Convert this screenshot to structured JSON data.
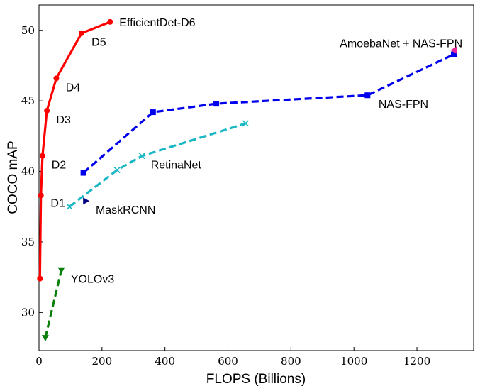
{
  "chart_data": {
    "type": "line",
    "title": "",
    "xlabel": "FLOPS (Billions)",
    "ylabel": "COCO mAP",
    "xlim": [
      0,
      1380
    ],
    "ylim": [
      27.3,
      51.8
    ],
    "xticks": [
      0,
      200,
      400,
      600,
      800,
      1000,
      1200
    ],
    "yticks": [
      30,
      35,
      40,
      45,
      50
    ],
    "grid": false,
    "legend": "none",
    "series": [
      {
        "name": "EfficientDet-D6",
        "color": "#ff0000",
        "style": "solid",
        "marker": "circle",
        "points": [
          [
            3,
            32.4
          ],
          [
            6,
            38.3
          ],
          [
            11,
            41.1
          ],
          [
            25,
            44.3
          ],
          [
            55,
            46.6
          ],
          [
            135,
            49.8
          ],
          [
            226,
            50.6
          ]
        ],
        "point_labels": [
          "",
          "D1",
          "D2",
          "D3",
          "D4",
          "D5",
          ""
        ]
      },
      {
        "name": "NAS-FPN",
        "color": "#0000ee",
        "style": "dashed",
        "marker": "square",
        "points": [
          [
            141,
            39.9
          ],
          [
            362,
            44.2
          ],
          [
            563,
            44.8
          ],
          [
            1043,
            45.4
          ],
          [
            1317,
            48.3
          ]
        ]
      },
      {
        "name": "RetinaNet",
        "color": "#1ab8c4",
        "style": "dashed",
        "marker": "x",
        "points": [
          [
            97,
            37.5
          ],
          [
            248,
            40.1
          ],
          [
            327,
            41.1
          ],
          [
            656,
            43.4
          ]
        ]
      },
      {
        "name": "YOLOv3",
        "color": "#0a800a",
        "style": "dashed",
        "marker": "triangle-down",
        "points": [
          [
            20,
            28.2
          ],
          [
            71,
            33.0
          ]
        ]
      },
      {
        "name": "MaskRCNN",
        "color": "#000080",
        "style": "none",
        "marker": "triangle-right",
        "points": [
          [
            149,
            37.9
          ]
        ]
      },
      {
        "name": "AmoebaNet + NAS-FPN",
        "color": "#e6259e",
        "style": "none",
        "marker": "triangle-left",
        "points": [
          [
            1317,
            48.6
          ]
        ]
      }
    ],
    "annotations": [
      {
        "text": "EfficientDet-D6",
        "x": 255,
        "y": 50.6
      },
      {
        "text": "D5",
        "x": 167,
        "y": 49.2
      },
      {
        "text": "D4",
        "x": 85,
        "y": 46.0
      },
      {
        "text": "D3",
        "x": 55,
        "y": 43.7
      },
      {
        "text": "D2",
        "x": 40,
        "y": 40.5
      },
      {
        "text": "D1",
        "x": 37,
        "y": 37.8
      },
      {
        "text": "MaskRCNN",
        "x": 180,
        "y": 37.3
      },
      {
        "text": "YOLOv3",
        "x": 101,
        "y": 32.4
      },
      {
        "text": "RetinaNet",
        "x": 355,
        "y": 40.5
      },
      {
        "text": "NAS-FPN",
        "x": 1078,
        "y": 44.8
      },
      {
        "text": "AmoebaNet + NAS-FPN",
        "x": 955,
        "y": 49.1
      }
    ]
  }
}
